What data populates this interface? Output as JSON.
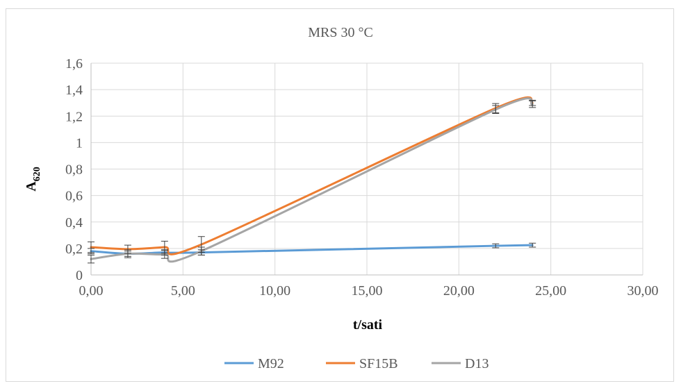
{
  "chart_data": {
    "type": "line",
    "title": "MRS 30 °C",
    "xlabel": "t/sati",
    "ylabel_main": "A",
    "ylabel_sub": "620",
    "xlim": [
      0,
      30
    ],
    "ylim": [
      0,
      1.6
    ],
    "x_ticks": [
      "0,00",
      "5,00",
      "10,00",
      "15,00",
      "20,00",
      "25,00",
      "30,00"
    ],
    "y_ticks": [
      "0",
      "0,2",
      "0,4",
      "0,6",
      "0,8",
      "1",
      "1,2",
      "1,4",
      "1,6"
    ],
    "grid": true,
    "legend_position": "bottom",
    "x": [
      0,
      2,
      4,
      6,
      22,
      24
    ],
    "series": [
      {
        "name": "M92",
        "color": "#5b9bd5",
        "values": [
          0.18,
          0.16,
          0.17,
          0.17,
          0.22,
          0.225
        ],
        "error": [
          0.02,
          0.02,
          0.02,
          0.02,
          0.015,
          0.015
        ]
      },
      {
        "name": "SF15B",
        "color": "#ed7d31",
        "values": [
          0.21,
          0.195,
          0.21,
          0.23,
          1.26,
          1.3
        ],
        "error": [
          0.04,
          0.03,
          0.045,
          0.06,
          0.035,
          0.02
        ]
      },
      {
        "name": "D13",
        "color": "#a5a5a5",
        "values": [
          0.12,
          0.16,
          0.155,
          0.18,
          1.25,
          1.29
        ],
        "error": [
          0.03,
          0.03,
          0.03,
          0.03,
          0.03,
          0.025
        ]
      }
    ]
  }
}
